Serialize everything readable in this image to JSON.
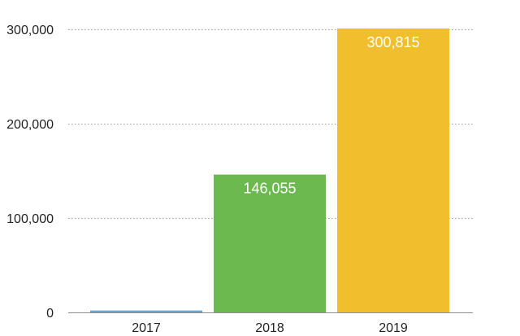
{
  "chart_data": {
    "type": "bar",
    "title": "",
    "xlabel": "",
    "ylabel": "",
    "categories": [
      "2017",
      "2018",
      "2019"
    ],
    "values": [
      2000,
      146055,
      300815
    ],
    "data_labels": [
      "",
      "146,055",
      "300,815"
    ],
    "colors": [
      "#5ba8dc",
      "#6cb94f",
      "#f1be2e"
    ],
    "ylim": [
      0,
      300000
    ],
    "yticks": [
      0,
      100000,
      200000,
      300000
    ],
    "ytick_labels": [
      "0",
      "100,000",
      "200,000",
      "300,000"
    ],
    "grid": true,
    "legend": "none"
  }
}
